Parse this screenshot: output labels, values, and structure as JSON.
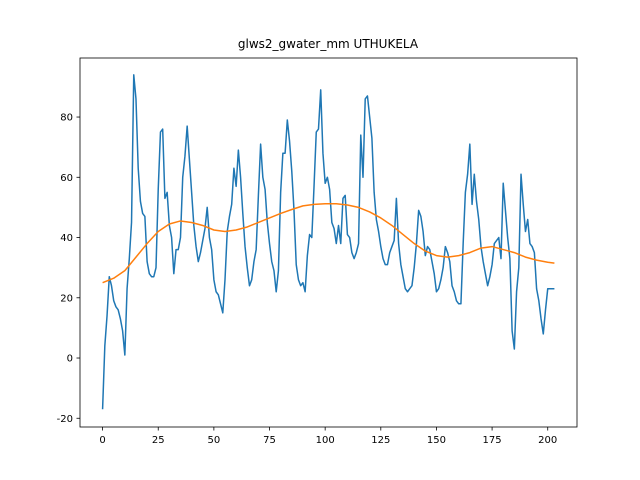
{
  "chart_data": {
    "type": "line",
    "title": "glws2_gwater_mm UTHUKELA",
    "xlim": [
      -10.15,
      213.15
    ],
    "ylim": [
      -22.9,
      99.6
    ],
    "xticks": [
      0,
      25,
      50,
      75,
      100,
      125,
      150,
      175,
      200
    ],
    "yticks": [
      -20,
      0,
      20,
      40,
      60,
      80
    ],
    "series": [
      {
        "color": "#1f77b4",
        "x": [
          0,
          1,
          2,
          3,
          4,
          5,
          6,
          7,
          8,
          9,
          10,
          11,
          12,
          13,
          14,
          15,
          16,
          17,
          18,
          19,
          20,
          21,
          22,
          23,
          24,
          25,
          26,
          27,
          28,
          29,
          30,
          31,
          32,
          33,
          34,
          35,
          36,
          37,
          38,
          39,
          40,
          41,
          42,
          43,
          44,
          45,
          46,
          47,
          48,
          49,
          50,
          51,
          52,
          53,
          54,
          55,
          56,
          57,
          58,
          59,
          60,
          61,
          62,
          63,
          64,
          65,
          66,
          67,
          68,
          69,
          70,
          71,
          72,
          73,
          74,
          75,
          76,
          77,
          78,
          79,
          80,
          81,
          82,
          83,
          84,
          85,
          86,
          87,
          88,
          89,
          90,
          91,
          92,
          93,
          94,
          95,
          96,
          97,
          98,
          99,
          100,
          101,
          102,
          103,
          104,
          105,
          106,
          107,
          108,
          109,
          110,
          111,
          112,
          113,
          114,
          115,
          116,
          117,
          118,
          119,
          120,
          121,
          122,
          123,
          124,
          125,
          126,
          127,
          128,
          129,
          130,
          131,
          132,
          133,
          134,
          135,
          136,
          137,
          138,
          139,
          140,
          141,
          142,
          143,
          144,
          145,
          146,
          147,
          148,
          149,
          150,
          151,
          152,
          153,
          154,
          155,
          156,
          157,
          158,
          159,
          160,
          161,
          162,
          163,
          164,
          165,
          166,
          167,
          168,
          169,
          170,
          171,
          172,
          173,
          174,
          175,
          176,
          177,
          178,
          179,
          180,
          181,
          182,
          183,
          184,
          185,
          186,
          187,
          188,
          189,
          190,
          191,
          192,
          193,
          194,
          195,
          196,
          197,
          198,
          199,
          200,
          201,
          202,
          203
        ],
        "values": [
          -17,
          4,
          14,
          27,
          24,
          19,
          17,
          16,
          13,
          9,
          1,
          23,
          33,
          45,
          94,
          86,
          63,
          52,
          48,
          47,
          32,
          28,
          27,
          27,
          30,
          56,
          75,
          76,
          53,
          55,
          44,
          40,
          28,
          36,
          36,
          40,
          60,
          67,
          77,
          66,
          55,
          44,
          37,
          32,
          35,
          39,
          43,
          50,
          40,
          36,
          26,
          22,
          21,
          18,
          15,
          26,
          42,
          47,
          51,
          63,
          57,
          69,
          60,
          48,
          37,
          30,
          24,
          26,
          32,
          36,
          54,
          71,
          60,
          56,
          45,
          38,
          32,
          29,
          22,
          29,
          55,
          68,
          68,
          79,
          72,
          62,
          49,
          31,
          26,
          24,
          25,
          22,
          34,
          41,
          40,
          57,
          75,
          76,
          89,
          68,
          58,
          60,
          56,
          45,
          43,
          38,
          44,
          38,
          53,
          54,
          41,
          40,
          35,
          33,
          35,
          38,
          74,
          60,
          86,
          87,
          80,
          73,
          55,
          46,
          42,
          37,
          33,
          31,
          31,
          35,
          37,
          39,
          53,
          38,
          31,
          27,
          23,
          22,
          23,
          24,
          30,
          38,
          49,
          47,
          42,
          34,
          37,
          36,
          32,
          28,
          22,
          23,
          26,
          30,
          37,
          35,
          32,
          24,
          22,
          19,
          18,
          18,
          38,
          55,
          61,
          71,
          51,
          61,
          52,
          46,
          37,
          32,
          28,
          24,
          27,
          31,
          38,
          39,
          40,
          33,
          58,
          49,
          40,
          33,
          9,
          3,
          22,
          30,
          61,
          51,
          42,
          46,
          38,
          37,
          35,
          23,
          19,
          13,
          8,
          16,
          23,
          23,
          23,
          23
        ]
      },
      {
        "color": "#ff7f0e",
        "x": [
          0,
          5,
          10,
          15,
          20,
          25,
          30,
          35,
          40,
          45,
          50,
          55,
          60,
          65,
          70,
          75,
          80,
          85,
          90,
          95,
          100,
          105,
          110,
          115,
          120,
          125,
          130,
          135,
          140,
          145,
          150,
          155,
          160,
          165,
          170,
          175,
          180,
          185,
          190,
          195,
          200,
          203
        ],
        "values": [
          25,
          26.5,
          29,
          33.5,
          38,
          42,
          44.5,
          45.5,
          45,
          44,
          42.5,
          42,
          42.5,
          43.5,
          45,
          46.5,
          48,
          49.3,
          50.5,
          51,
          51.2,
          51.2,
          50.8,
          50,
          48.5,
          46.5,
          44,
          41,
          38,
          35.5,
          34,
          33.5,
          34,
          35,
          36.5,
          37,
          36,
          35,
          33.5,
          32.5,
          31.8,
          31.5
        ]
      }
    ]
  }
}
